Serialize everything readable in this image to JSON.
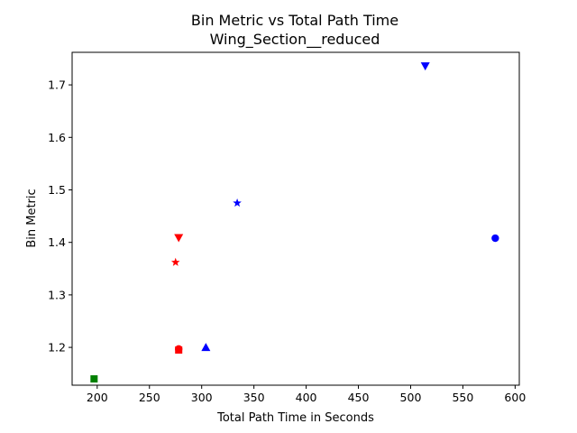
{
  "chart_data": {
    "type": "scatter",
    "title": "Bin Metric vs Total Path Time",
    "subtitle": "Wing_Section__reduced",
    "xlabel": "Total Path Time in Seconds",
    "ylabel": "Bin Metric",
    "xlim": [
      176,
      604
    ],
    "ylim": [
      1.128,
      1.762
    ],
    "xticks": [
      200,
      250,
      300,
      350,
      400,
      450,
      500,
      550,
      600
    ],
    "yticks": [
      1.2,
      1.3,
      1.4,
      1.5,
      1.6,
      1.7
    ],
    "xtick_labels": [
      "200",
      "250",
      "300",
      "350",
      "400",
      "450",
      "500",
      "550",
      "600"
    ],
    "ytick_labels": [
      "1.2",
      "1.3",
      "1.4",
      "1.5",
      "1.6",
      "1.7"
    ],
    "grid": false,
    "points": [
      {
        "x": 514,
        "y": 1.736,
        "marker": "triangle-down",
        "color": "#0000ff"
      },
      {
        "x": 334,
        "y": 1.475,
        "marker": "star",
        "color": "#0000ff"
      },
      {
        "x": 581,
        "y": 1.408,
        "marker": "circle",
        "color": "#0000ff"
      },
      {
        "x": 304,
        "y": 1.2,
        "marker": "triangle-up",
        "color": "#0000ff"
      },
      {
        "x": 278,
        "y": 1.409,
        "marker": "triangle-down",
        "color": "#ff0000"
      },
      {
        "x": 275,
        "y": 1.362,
        "marker": "star",
        "color": "#ff0000"
      },
      {
        "x": 278,
        "y": 1.197,
        "marker": "circle",
        "color": "#ff0000"
      },
      {
        "x": 278,
        "y": 1.195,
        "marker": "square",
        "color": "#ff0000"
      },
      {
        "x": 197,
        "y": 1.14,
        "marker": "square",
        "color": "#008000"
      }
    ]
  }
}
